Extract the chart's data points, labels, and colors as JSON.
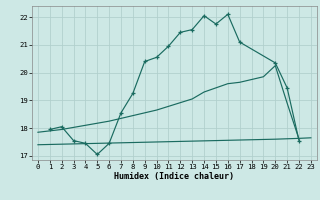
{
  "xlabel": "Humidex (Indice chaleur)",
  "bg_color": "#cde8e5",
  "grid_color": "#b0cfcc",
  "line_color": "#1a6b60",
  "xlim": [
    -0.5,
    23.5
  ],
  "ylim": [
    16.85,
    22.4
  ],
  "yticks": [
    17,
    18,
    19,
    20,
    21,
    22
  ],
  "xticks": [
    0,
    1,
    2,
    3,
    4,
    5,
    6,
    7,
    8,
    9,
    10,
    11,
    12,
    13,
    14,
    15,
    16,
    17,
    18,
    19,
    20,
    21,
    22,
    23
  ],
  "line1_x": [
    1,
    2,
    3,
    4,
    5,
    6,
    7,
    8,
    9,
    10,
    11,
    12,
    13,
    14,
    15,
    16,
    17,
    20,
    21,
    22
  ],
  "line1_y": [
    17.95,
    18.05,
    17.55,
    17.45,
    17.05,
    17.45,
    18.55,
    19.25,
    20.4,
    20.55,
    20.95,
    21.45,
    21.55,
    22.05,
    21.75,
    22.1,
    21.1,
    20.35,
    19.45,
    17.55
  ],
  "line2_x": [
    0,
    1,
    2,
    6,
    10,
    13,
    14,
    16,
    17,
    18,
    19,
    20,
    21,
    22
  ],
  "line2_y": [
    17.85,
    17.9,
    17.95,
    18.25,
    18.65,
    19.05,
    19.3,
    19.6,
    19.65,
    19.75,
    19.85,
    20.25,
    18.9,
    17.6
  ],
  "line3_x": [
    0,
    2,
    5,
    10,
    15,
    20,
    22,
    23
  ],
  "line3_y": [
    17.4,
    17.42,
    17.45,
    17.5,
    17.55,
    17.6,
    17.63,
    17.65
  ]
}
